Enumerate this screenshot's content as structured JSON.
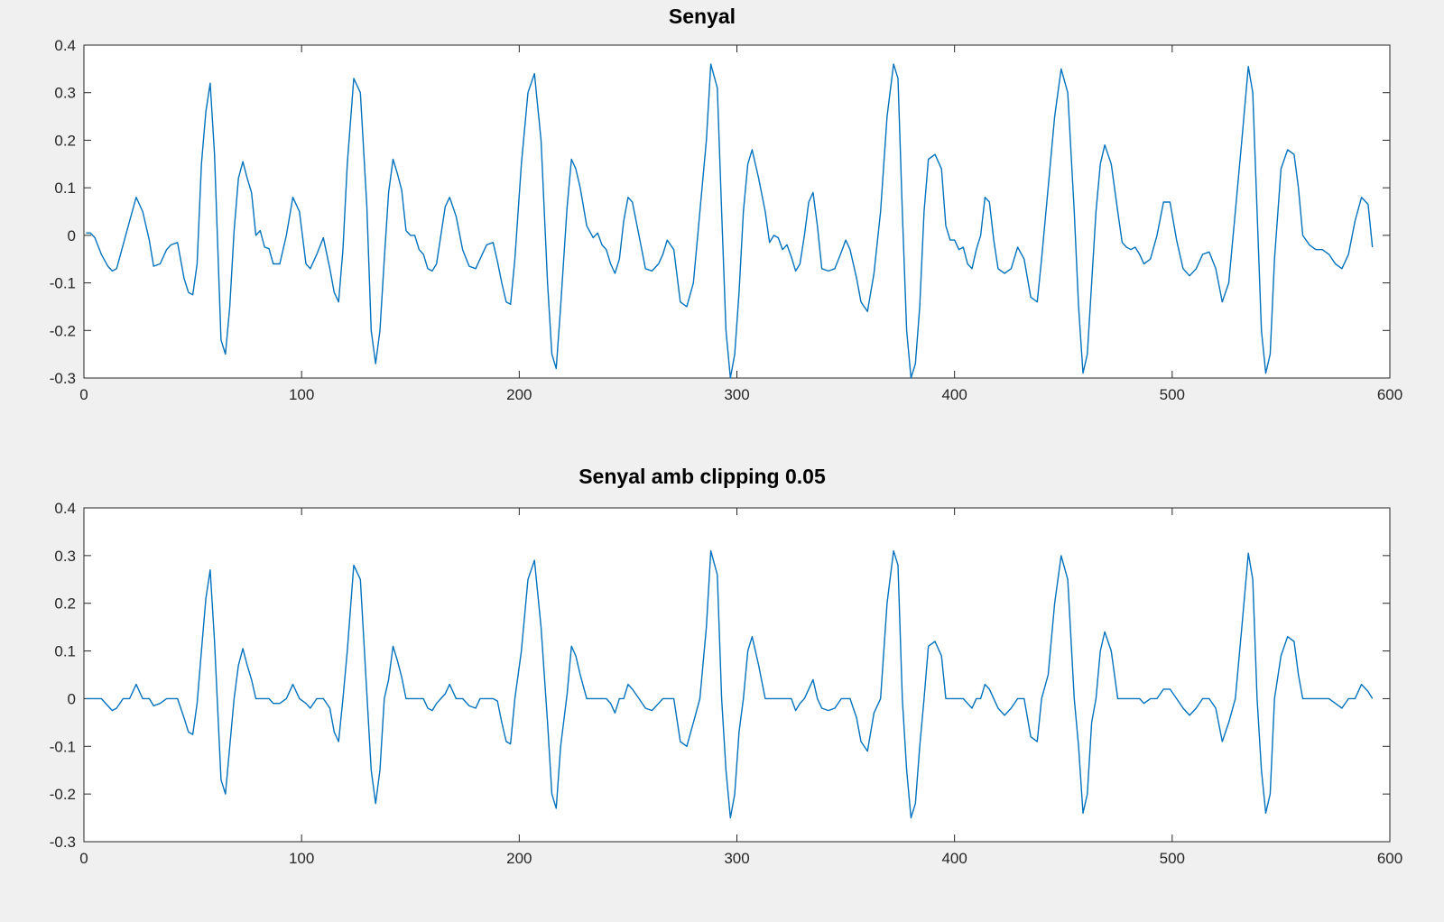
{
  "figure": {
    "background": "#f0f0f0",
    "line_color": "#0072bd"
  },
  "chart_data": [
    {
      "type": "line",
      "title": "Senyal",
      "xlabel": "",
      "ylabel": "",
      "xlim": [
        0,
        600
      ],
      "ylim": [
        -0.3,
        0.4
      ],
      "xticks": [
        0,
        100,
        200,
        300,
        400,
        500,
        600
      ],
      "yticks": [
        -0.3,
        -0.2,
        -0.1,
        0,
        0.1,
        0.2,
        0.3,
        0.4
      ],
      "xtick_labels": [
        "0",
        "100",
        "200",
        "300",
        "400",
        "500",
        "600"
      ],
      "ytick_labels": [
        "-0.3",
        "-0.2",
        "-0.1",
        "0",
        "0.1",
        "0.2",
        "0.3",
        "0.4"
      ],
      "grid": false,
      "series": [
        {
          "x": [
            1,
            3,
            5,
            8,
            11,
            13,
            15,
            18,
            21,
            24,
            27,
            30,
            32,
            35,
            38,
            40,
            43,
            46,
            48,
            50,
            52,
            54,
            56,
            58,
            60,
            63,
            65,
            67,
            69,
            71,
            73,
            75,
            77,
            79,
            81,
            83,
            85,
            87,
            90,
            93,
            96,
            99,
            102,
            104,
            107,
            110,
            113,
            115,
            117,
            119,
            121,
            124,
            127,
            130,
            132,
            134,
            136,
            138,
            140,
            142,
            144,
            146,
            148,
            150,
            152,
            154,
            156,
            158,
            160,
            162,
            164,
            166,
            168,
            171,
            174,
            177,
            180,
            182,
            185,
            188,
            190,
            192,
            194,
            196,
            198,
            201,
            204,
            207,
            210,
            213,
            215,
            217,
            219,
            222,
            224,
            226,
            228,
            231,
            234,
            236,
            238,
            240,
            242,
            244,
            246,
            248,
            250,
            252,
            255,
            258,
            261,
            264,
            266,
            268,
            271,
            274,
            277,
            280,
            283,
            286,
            288,
            291,
            293,
            295,
            297,
            299,
            301,
            303,
            305,
            307,
            310,
            313,
            315,
            317,
            319,
            321,
            323,
            325,
            327,
            329,
            331,
            333,
            335,
            337,
            339,
            342,
            345,
            348,
            350,
            352,
            355,
            357,
            360,
            363,
            366,
            369,
            372,
            374,
            376,
            378,
            380,
            382,
            384,
            386,
            388,
            391,
            394,
            396,
            398,
            400,
            402,
            404,
            406,
            408,
            410,
            412,
            414,
            416,
            418,
            420,
            423,
            426,
            429,
            432,
            435,
            438,
            440,
            443,
            446,
            449,
            452,
            455,
            457,
            459,
            461,
            463,
            465,
            467,
            469,
            472,
            475,
            477,
            479,
            481,
            483,
            485,
            487,
            490,
            493,
            496,
            499,
            502,
            505,
            508,
            511,
            514,
            517,
            520,
            523,
            526,
            529,
            532,
            535,
            537,
            539,
            541,
            543,
            545,
            547,
            550,
            553,
            556,
            558,
            560,
            563,
            566,
            569,
            572,
            575,
            578,
            581,
            584,
            587,
            590,
            592
          ],
          "y": [
            0.005,
            0.005,
            -0.005,
            -0.04,
            -0.065,
            -0.075,
            -0.07,
            -0.02,
            0.03,
            0.08,
            0.05,
            -0.01,
            -0.065,
            -0.06,
            -0.03,
            -0.02,
            -0.015,
            -0.09,
            -0.12,
            -0.125,
            -0.06,
            0.15,
            0.26,
            0.32,
            0.17,
            -0.22,
            -0.25,
            -0.15,
            0.01,
            0.12,
            0.155,
            0.12,
            0.09,
            0.0,
            0.01,
            -0.025,
            -0.028,
            -0.06,
            -0.06,
            0.0,
            0.08,
            0.05,
            -0.06,
            -0.07,
            -0.04,
            -0.005,
            -0.07,
            -0.12,
            -0.14,
            -0.03,
            0.15,
            0.33,
            0.3,
            0.06,
            -0.2,
            -0.27,
            -0.2,
            -0.05,
            0.09,
            0.16,
            0.13,
            0.095,
            0.01,
            0.0,
            0.0,
            -0.03,
            -0.04,
            -0.07,
            -0.075,
            -0.06,
            0.0,
            0.06,
            0.08,
            0.04,
            -0.03,
            -0.065,
            -0.07,
            -0.05,
            -0.02,
            -0.015,
            -0.055,
            -0.1,
            -0.14,
            -0.145,
            -0.05,
            0.15,
            0.3,
            0.34,
            0.2,
            -0.1,
            -0.25,
            -0.28,
            -0.15,
            0.06,
            0.16,
            0.14,
            0.1,
            0.02,
            -0.005,
            0.005,
            -0.02,
            -0.03,
            -0.06,
            -0.08,
            -0.05,
            0.03,
            0.08,
            0.07,
            0.0,
            -0.07,
            -0.075,
            -0.06,
            -0.04,
            -0.01,
            -0.03,
            -0.14,
            -0.15,
            -0.1,
            0.05,
            0.2,
            0.36,
            0.31,
            0.05,
            -0.2,
            -0.3,
            -0.25,
            -0.12,
            0.05,
            0.15,
            0.18,
            0.12,
            0.05,
            -0.015,
            0.0,
            -0.005,
            -0.03,
            -0.02,
            -0.045,
            -0.075,
            -0.06,
            0.0,
            0.07,
            0.09,
            0.02,
            -0.07,
            -0.075,
            -0.07,
            -0.035,
            -0.01,
            -0.03,
            -0.09,
            -0.14,
            -0.16,
            -0.08,
            0.05,
            0.25,
            0.36,
            0.33,
            0.05,
            -0.2,
            -0.3,
            -0.27,
            -0.15,
            0.05,
            0.16,
            0.17,
            0.14,
            0.02,
            -0.01,
            -0.01,
            -0.03,
            -0.025,
            -0.06,
            -0.07,
            -0.03,
            0.0,
            0.08,
            0.07,
            -0.01,
            -0.07,
            -0.08,
            -0.07,
            -0.025,
            -0.05,
            -0.13,
            -0.14,
            -0.05,
            0.1,
            0.25,
            0.35,
            0.3,
            0.05,
            -0.15,
            -0.29,
            -0.25,
            -0.1,
            0.05,
            0.15,
            0.19,
            0.15,
            0.05,
            -0.015,
            -0.025,
            -0.03,
            -0.025,
            -0.04,
            -0.06,
            -0.05,
            0.0,
            0.07,
            0.07,
            -0.01,
            -0.07,
            -0.085,
            -0.07,
            -0.04,
            -0.035,
            -0.07,
            -0.14,
            -0.1,
            0.05,
            0.2,
            0.355,
            0.3,
            0.05,
            -0.2,
            -0.29,
            -0.25,
            -0.05,
            0.14,
            0.18,
            0.17,
            0.1,
            0.0,
            -0.02,
            -0.03,
            -0.03,
            -0.04,
            -0.06,
            -0.07,
            -0.04,
            0.03,
            0.08,
            0.065,
            -0.025
          ]
        }
      ]
    },
    {
      "type": "line",
      "title": "Senyal amb clipping 0.05",
      "xlabel": "",
      "ylabel": "",
      "xlim": [
        0,
        600
      ],
      "ylim": [
        -0.3,
        0.4
      ],
      "xticks": [
        0,
        100,
        200,
        300,
        400,
        500,
        600
      ],
      "yticks": [
        -0.3,
        -0.2,
        -0.1,
        0,
        0.1,
        0.2,
        0.3,
        0.4
      ],
      "xtick_labels": [
        "0",
        "100",
        "200",
        "300",
        "400",
        "500",
        "600"
      ],
      "ytick_labels": [
        "-0.3",
        "-0.2",
        "-0.1",
        "0",
        "0.1",
        "0.2",
        "0.3",
        "0.4"
      ],
      "grid": false,
      "series": [
        {
          "x": [
            1,
            3,
            5,
            8,
            11,
            13,
            15,
            18,
            21,
            24,
            27,
            30,
            32,
            35,
            38,
            40,
            43,
            46,
            48,
            50,
            52,
            54,
            56,
            58,
            60,
            63,
            65,
            67,
            69,
            71,
            73,
            75,
            77,
            79,
            81,
            83,
            85,
            87,
            90,
            93,
            96,
            99,
            102,
            104,
            107,
            110,
            113,
            115,
            117,
            119,
            121,
            124,
            127,
            130,
            132,
            134,
            136,
            138,
            140,
            142,
            144,
            146,
            148,
            150,
            152,
            154,
            156,
            158,
            160,
            162,
            164,
            166,
            168,
            171,
            174,
            177,
            180,
            182,
            185,
            188,
            190,
            192,
            194,
            196,
            198,
            201,
            204,
            207,
            210,
            213,
            215,
            217,
            219,
            222,
            224,
            226,
            228,
            231,
            234,
            236,
            238,
            240,
            242,
            244,
            246,
            248,
            250,
            252,
            255,
            258,
            261,
            264,
            266,
            268,
            271,
            274,
            277,
            280,
            283,
            286,
            288,
            291,
            293,
            295,
            297,
            299,
            301,
            303,
            305,
            307,
            310,
            313,
            315,
            317,
            319,
            321,
            323,
            325,
            327,
            329,
            331,
            333,
            335,
            337,
            339,
            342,
            345,
            348,
            350,
            352,
            355,
            357,
            360,
            363,
            366,
            369,
            372,
            374,
            376,
            378,
            380,
            382,
            384,
            386,
            388,
            391,
            394,
            396,
            398,
            400,
            402,
            404,
            406,
            408,
            410,
            412,
            414,
            416,
            418,
            420,
            423,
            426,
            429,
            432,
            435,
            438,
            440,
            443,
            446,
            449,
            452,
            455,
            457,
            459,
            461,
            463,
            465,
            467,
            469,
            472,
            475,
            477,
            479,
            481,
            483,
            485,
            487,
            490,
            493,
            496,
            499,
            502,
            505,
            508,
            511,
            514,
            517,
            520,
            523,
            526,
            529,
            532,
            535,
            537,
            539,
            541,
            543,
            545,
            547,
            550,
            553,
            556,
            558,
            560,
            563,
            566,
            569,
            572,
            575,
            578,
            581,
            584,
            587,
            590,
            592
          ],
          "y": [
            0.0,
            0.0,
            0.0,
            0.0,
            -0.015,
            -0.025,
            -0.02,
            0.0,
            0.0,
            0.03,
            0.0,
            0.0,
            -0.015,
            -0.01,
            0.0,
            0.0,
            0.0,
            -0.04,
            -0.07,
            -0.075,
            -0.01,
            0.1,
            0.21,
            0.27,
            0.12,
            -0.17,
            -0.2,
            -0.1,
            0.0,
            0.07,
            0.105,
            0.07,
            0.04,
            0.0,
            0.0,
            0.0,
            0.0,
            -0.01,
            -0.01,
            0.0,
            0.03,
            0.0,
            -0.01,
            -0.02,
            0.0,
            0.0,
            -0.02,
            -0.07,
            -0.09,
            0.0,
            0.1,
            0.28,
            0.25,
            0.01,
            -0.15,
            -0.22,
            -0.15,
            0.0,
            0.04,
            0.11,
            0.08,
            0.045,
            0.0,
            0.0,
            0.0,
            0.0,
            0.0,
            -0.02,
            -0.025,
            -0.01,
            0.0,
            0.01,
            0.03,
            0.0,
            0.0,
            -0.015,
            -0.02,
            0.0,
            0.0,
            0.0,
            -0.005,
            -0.05,
            -0.09,
            -0.095,
            0.0,
            0.1,
            0.25,
            0.29,
            0.15,
            -0.05,
            -0.2,
            -0.23,
            -0.1,
            0.01,
            0.11,
            0.09,
            0.05,
            0.0,
            0.0,
            0.0,
            0.0,
            0.0,
            -0.01,
            -0.03,
            0.0,
            0.0,
            0.03,
            0.02,
            0.0,
            -0.02,
            -0.025,
            -0.01,
            0.0,
            0.0,
            0.0,
            -0.09,
            -0.1,
            -0.05,
            0.0,
            0.15,
            0.31,
            0.26,
            0.0,
            -0.15,
            -0.25,
            -0.2,
            -0.07,
            0.0,
            0.1,
            0.13,
            0.07,
            0.0,
            0.0,
            0.0,
            0.0,
            0.0,
            0.0,
            0.0,
            -0.025,
            -0.01,
            0.0,
            0.02,
            0.04,
            0.0,
            -0.02,
            -0.025,
            -0.02,
            0.0,
            0.0,
            0.0,
            -0.04,
            -0.09,
            -0.11,
            -0.03,
            0.0,
            0.2,
            0.31,
            0.28,
            0.0,
            -0.15,
            -0.25,
            -0.22,
            -0.1,
            0.0,
            0.11,
            0.12,
            0.09,
            0.0,
            0.0,
            0.0,
            0.0,
            0.0,
            -0.01,
            -0.02,
            0.0,
            0.0,
            0.03,
            0.02,
            0.0,
            -0.02,
            -0.035,
            -0.02,
            0.0,
            0.0,
            -0.08,
            -0.09,
            0.0,
            0.05,
            0.2,
            0.3,
            0.25,
            0.0,
            -0.1,
            -0.24,
            -0.2,
            -0.05,
            0.0,
            0.1,
            0.14,
            0.1,
            0.0,
            0.0,
            0.0,
            0.0,
            0.0,
            0.0,
            -0.01,
            0.0,
            0.0,
            0.02,
            0.02,
            0.0,
            -0.02,
            -0.035,
            -0.02,
            0.0,
            0.0,
            -0.02,
            -0.09,
            -0.05,
            0.0,
            0.15,
            0.305,
            0.25,
            0.0,
            -0.15,
            -0.24,
            -0.2,
            0.0,
            0.09,
            0.13,
            0.12,
            0.05,
            0.0,
            0.0,
            0.0,
            0.0,
            0.0,
            -0.01,
            -0.02,
            0.0,
            0.0,
            0.03,
            0.015,
            0.0
          ]
        }
      ]
    }
  ]
}
